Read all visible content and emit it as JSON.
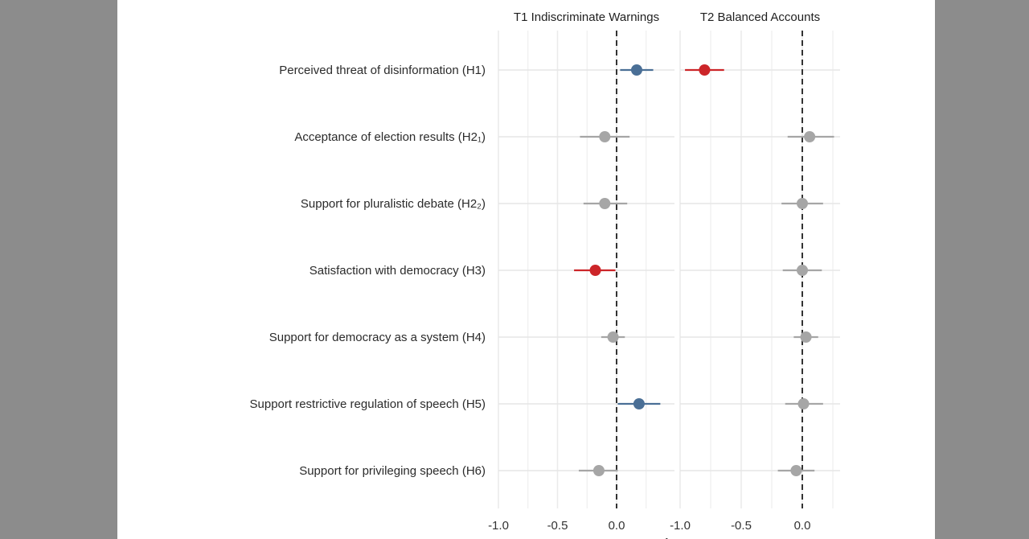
{
  "chart_data": {
    "type": "scatter",
    "subtype": "coefficient-plot-with-confidence-intervals",
    "xlabel": "estimate",
    "xlim": [
      -1.0,
      0.35
    ],
    "x_ticks": [
      "-1.0",
      "-0.5",
      "0.0"
    ],
    "x_tick_values": [
      -1.0,
      -0.5,
      0.0
    ],
    "reference_line": {
      "x": 0,
      "style": "dashed"
    },
    "grid": true,
    "colors": {
      "positive_significant": "#4a6f96",
      "negative_significant": "#cc2529",
      "not_significant": "#a6a6a6"
    },
    "categories": [
      "Perceived threat of disinformation (H1)",
      "Acceptance of election results (H2₁)",
      "Support for pluralistic debate (H2₂)",
      "Satisfaction with democracy (H3)",
      "Support for democracy as a system (H4)",
      "Support restrictive regulation of speech (H5)",
      "Support for privileging speech (H6)"
    ],
    "panels": [
      {
        "title": "T1 Indiscriminate Warnings",
        "points": [
          {
            "estimate": 0.17,
            "lower": 0.03,
            "upper": 0.31,
            "status": "positive_significant"
          },
          {
            "estimate": -0.1,
            "lower": -0.31,
            "upper": 0.11,
            "status": "not_significant"
          },
          {
            "estimate": -0.1,
            "lower": -0.28,
            "upper": 0.09,
            "status": "not_significant"
          },
          {
            "estimate": -0.18,
            "lower": -0.36,
            "upper": -0.01,
            "status": "negative_significant"
          },
          {
            "estimate": -0.03,
            "lower": -0.13,
            "upper": 0.07,
            "status": "not_significant"
          },
          {
            "estimate": 0.19,
            "lower": 0.01,
            "upper": 0.37,
            "status": "positive_significant"
          },
          {
            "estimate": -0.15,
            "lower": -0.32,
            "upper": 0.01,
            "status": "not_significant"
          }
        ]
      },
      {
        "title": "T2 Balanced Accounts",
        "points": [
          {
            "estimate": -0.8,
            "lower": -0.96,
            "upper": -0.64,
            "status": "negative_significant"
          },
          {
            "estimate": 0.06,
            "lower": -0.12,
            "upper": 0.26,
            "status": "not_significant"
          },
          {
            "estimate": 0.0,
            "lower": -0.17,
            "upper": 0.17,
            "status": "not_significant"
          },
          {
            "estimate": 0.0,
            "lower": -0.16,
            "upper": 0.16,
            "status": "not_significant"
          },
          {
            "estimate": 0.03,
            "lower": -0.07,
            "upper": 0.13,
            "status": "not_significant"
          },
          {
            "estimate": 0.01,
            "lower": -0.14,
            "upper": 0.17,
            "status": "not_significant"
          },
          {
            "estimate": -0.05,
            "lower": -0.2,
            "upper": 0.1,
            "status": "not_significant"
          }
        ]
      }
    ]
  }
}
